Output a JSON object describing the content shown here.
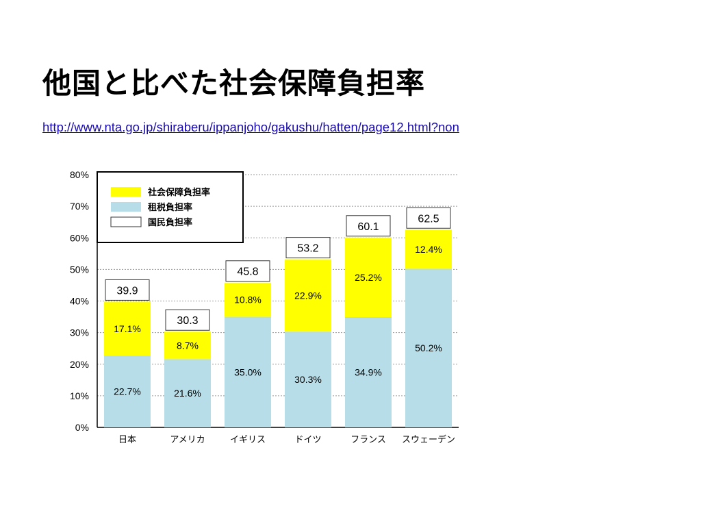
{
  "slide": {
    "title": "他国と比べた社会保障負担率",
    "link": "http://www.nta.go.jp/shiraberu/ippanjoho/gakushu/hatten/page12.html?non"
  },
  "chart_data": {
    "type": "bar",
    "stacked": true,
    "categories": [
      "日本",
      "アメリカ",
      "イギリス",
      "ドイツ",
      "フランス",
      "スウェーデン"
    ],
    "series": [
      {
        "name": "租税負担率",
        "values": [
          22.7,
          21.6,
          35.0,
          30.3,
          34.9,
          50.2
        ],
        "labels": [
          "22.7%",
          "21.6%",
          "35.0%",
          "30.3%",
          "34.9%",
          "50.2%"
        ],
        "color": "#b7dde8"
      },
      {
        "name": "社会保障負担率",
        "values": [
          17.1,
          8.7,
          10.8,
          22.9,
          25.2,
          12.4
        ],
        "labels": [
          "17.1%",
          "8.7%",
          "10.8%",
          "22.9%",
          "25.2%",
          "12.4%"
        ],
        "color": "#ffff00"
      }
    ],
    "totals": {
      "name": "国民負担率",
      "values": [
        "39.9",
        "30.3",
        "45.8",
        "53.2",
        "60.1",
        "62.5"
      ],
      "color": "#ffffff"
    },
    "yticks": [
      "0%",
      "10%",
      "20%",
      "30%",
      "40%",
      "50%",
      "60%",
      "70%",
      "80%"
    ],
    "ylim": [
      0,
      80
    ],
    "grid": true,
    "legend_position": "top-left"
  }
}
